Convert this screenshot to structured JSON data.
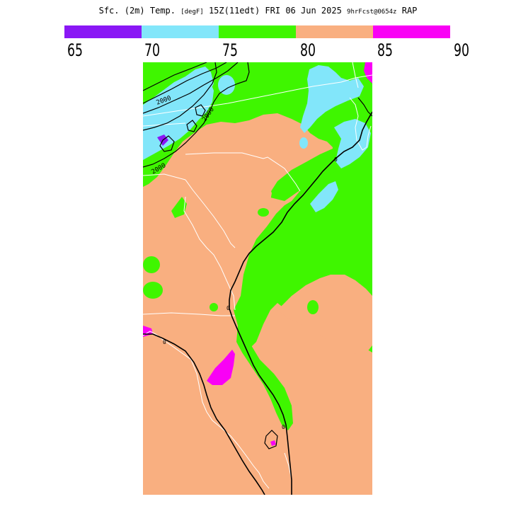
{
  "header": {
    "title_main": "Sfc. (2m) Temp.",
    "title_units": "[degF]",
    "title_time": "15Z(11edt) FRI 06 Jun 2025",
    "title_fcst": "9hrFcst@0654z",
    "title_model": "RAP"
  },
  "legend": {
    "colors": [
      "#8a17f5",
      "#82e6fa",
      "#3ff600",
      "#f9af80",
      "#f901f5"
    ],
    "ticks": [
      "65",
      "70",
      "75",
      "80",
      "85",
      "90"
    ]
  },
  "map": {
    "contour_label": "2000",
    "zero_label": "0",
    "fill_colors": {
      "t70": "#82e6fa",
      "t75": "#3ff600",
      "t80": "#f9af80",
      "t85": "#f901f5",
      "t65": "#8a17f5"
    }
  }
}
